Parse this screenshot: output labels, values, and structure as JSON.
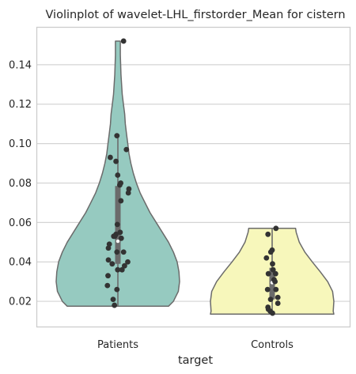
{
  "chart_data": {
    "type": "violin",
    "title": "Violinplot of wavelet-LHL_firstorder_Mean for cistern",
    "xlabel": "target",
    "ylabel": "",
    "categories": [
      "Patients",
      "Controls"
    ],
    "ylim": [
      0.007,
      0.159
    ],
    "yticks": [
      0.02,
      0.04,
      0.06,
      0.08,
      0.1,
      0.12,
      0.14
    ],
    "ytick_labels": [
      "0.02",
      "0.04",
      "0.06",
      "0.08",
      "0.10",
      "0.12",
      "0.14"
    ],
    "grid": true,
    "colors": {
      "Patients": "#96cac0",
      "Controls": "#f7f7bb",
      "points": "#333333",
      "outline": "#6b6b6b",
      "box": "#6b6b6b",
      "grid": "#d4d4d4",
      "frame": "#cccccc"
    },
    "violins": [
      {
        "name": "Patients",
        "profile": [
          [
            0.0175,
            0.82
          ],
          [
            0.02,
            0.9
          ],
          [
            0.025,
            0.98
          ],
          [
            0.03,
            1.0
          ],
          [
            0.035,
            0.99
          ],
          [
            0.04,
            0.96
          ],
          [
            0.045,
            0.9
          ],
          [
            0.05,
            0.82
          ],
          [
            0.055,
            0.72
          ],
          [
            0.06,
            0.62
          ],
          [
            0.065,
            0.52
          ],
          [
            0.07,
            0.44
          ],
          [
            0.075,
            0.36
          ],
          [
            0.08,
            0.3
          ],
          [
            0.085,
            0.25
          ],
          [
            0.09,
            0.21
          ],
          [
            0.095,
            0.18
          ],
          [
            0.1,
            0.16
          ],
          [
            0.105,
            0.14
          ],
          [
            0.11,
            0.12
          ],
          [
            0.115,
            0.11
          ],
          [
            0.12,
            0.09
          ],
          [
            0.125,
            0.07
          ],
          [
            0.13,
            0.06
          ],
          [
            0.135,
            0.05
          ],
          [
            0.14,
            0.045
          ],
          [
            0.145,
            0.04
          ],
          [
            0.152,
            0.04
          ]
        ],
        "quartiles": [
          0.039,
          0.0505,
          0.0785
        ],
        "whiskers": [
          0.0175,
          0.104
        ],
        "points": [
          [
            0.152,
            0.3
          ],
          [
            0.104,
            -0.05
          ],
          [
            0.097,
            0.45
          ],
          [
            0.093,
            -0.4
          ],
          [
            0.091,
            -0.1
          ],
          [
            0.084,
            -0.01
          ],
          [
            0.08,
            0.15
          ],
          [
            0.079,
            0.1
          ],
          [
            0.077,
            0.58
          ],
          [
            0.075,
            0.55
          ],
          [
            0.071,
            0.16
          ],
          [
            0.059,
            -0.03
          ],
          [
            0.055,
            0.12
          ],
          [
            0.054,
            -0.1
          ],
          [
            0.053,
            -0.22
          ],
          [
            0.053,
            -0.16
          ],
          [
            0.052,
            0.18
          ],
          [
            0.049,
            -0.45
          ],
          [
            0.047,
            -0.5
          ],
          [
            0.045,
            -0.05
          ],
          [
            0.045,
            0.3
          ],
          [
            0.041,
            -0.5
          ],
          [
            0.04,
            0.52
          ],
          [
            0.039,
            -0.3
          ],
          [
            0.038,
            0.35
          ],
          [
            0.036,
            -0.01
          ],
          [
            0.036,
            0.22
          ],
          [
            0.033,
            -0.52
          ],
          [
            0.028,
            -0.55
          ],
          [
            0.026,
            -0.05
          ],
          [
            0.021,
            -0.25
          ],
          [
            0.018,
            -0.18
          ]
        ]
      },
      {
        "name": "Controls",
        "profile": [
          [
            0.0135,
            1.0
          ],
          [
            0.015,
            0.99
          ],
          [
            0.02,
            1.0
          ],
          [
            0.025,
            0.98
          ],
          [
            0.03,
            0.9
          ],
          [
            0.035,
            0.78
          ],
          [
            0.04,
            0.65
          ],
          [
            0.045,
            0.53
          ],
          [
            0.05,
            0.44
          ],
          [
            0.055,
            0.39
          ],
          [
            0.057,
            0.38
          ]
        ],
        "quartiles": [
          0.021,
          0.0295,
          0.037
        ],
        "whiskers": [
          0.0135,
          0.057
        ],
        "points": [
          [
            0.057,
            0.2
          ],
          [
            0.054,
            -0.22
          ],
          [
            0.046,
            0.0
          ],
          [
            0.045,
            -0.07
          ],
          [
            0.042,
            -0.3
          ],
          [
            0.039,
            0.02
          ],
          [
            0.036,
            0.05
          ],
          [
            0.034,
            0.18
          ],
          [
            0.034,
            -0.2
          ],
          [
            0.031,
            0.1
          ],
          [
            0.03,
            0.15
          ],
          [
            0.026,
            0.2
          ],
          [
            0.026,
            -0.24
          ],
          [
            0.022,
            0.3
          ],
          [
            0.021,
            -0.08
          ],
          [
            0.019,
            0.3
          ],
          [
            0.017,
            -0.22
          ],
          [
            0.016,
            -0.2
          ],
          [
            0.015,
            -0.1
          ],
          [
            0.014,
            0.02
          ]
        ]
      }
    ]
  }
}
